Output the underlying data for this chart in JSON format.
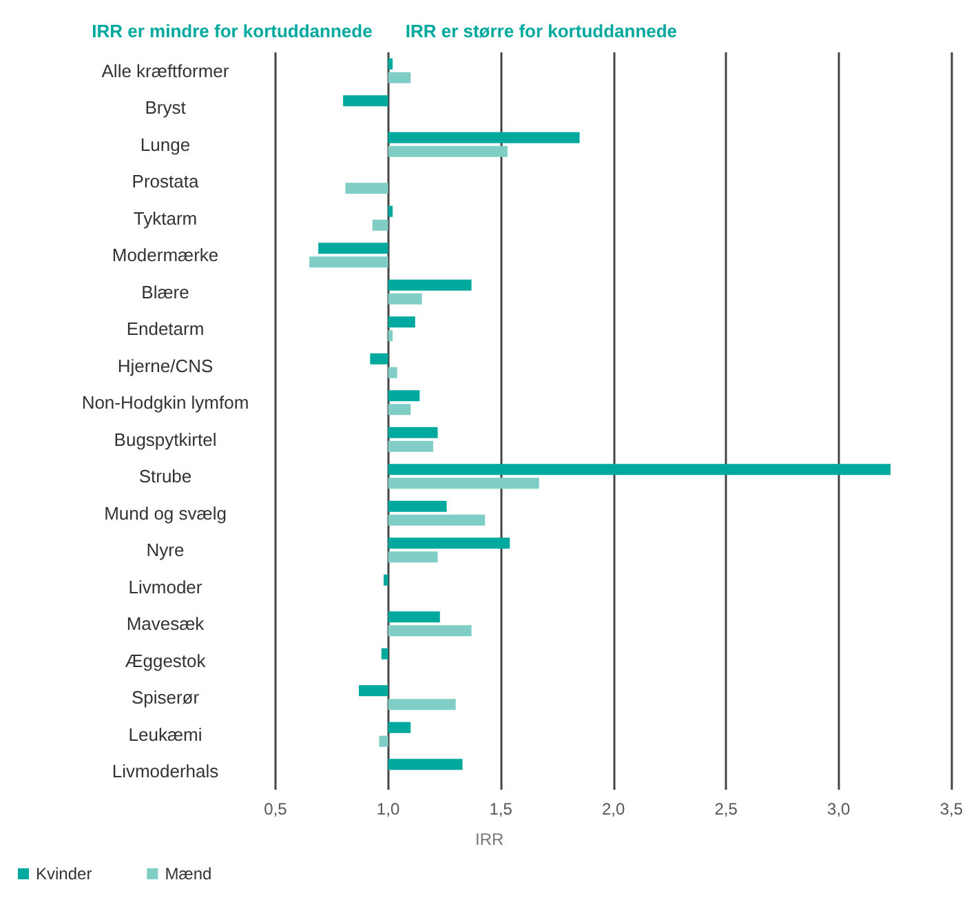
{
  "chart_data": {
    "type": "bar",
    "orientation": "horizontal",
    "xlabel": "IRR",
    "annotations": [
      "IRR er mindre for kortuddannede",
      "IRR er større for kortuddannede"
    ],
    "categories": [
      "Alle kræftformer",
      "Bryst",
      "Lunge",
      "Prostata",
      "Tyktarm",
      "Modermærke",
      "Blære",
      "Endetarm",
      "Hjerne/CNS",
      "Non-Hodgkin lymfom",
      "Bugspytkirtel",
      "Strube",
      "Mund og svælg",
      "Nyre",
      "Livmoder",
      "Mavesæk",
      "Æggestok",
      "Spiserør",
      "Leukæmi",
      "Livmoderhals"
    ],
    "series": [
      {
        "name": "Kvinder",
        "color": "#00a99d",
        "base": [
          1,
          1,
          1,
          null,
          1,
          1,
          1,
          1,
          1,
          1,
          1,
          1,
          1,
          1,
          1,
          1,
          1,
          1,
          1,
          1
        ],
        "values": [
          0.02,
          -0.2,
          0.85,
          null,
          0.02,
          -0.31,
          0.37,
          0.12,
          -0.08,
          0.14,
          0.22,
          2.23,
          0.26,
          0.54,
          -0.02,
          0.23,
          -0.03,
          -0.13,
          0.1,
          0.33
        ]
      },
      {
        "name": "Mænd",
        "color": "#7fcdc5",
        "base": [
          1,
          null,
          1,
          1,
          1,
          1,
          1,
          1,
          1,
          1,
          1,
          1,
          1,
          1,
          null,
          1,
          null,
          1,
          1,
          null
        ],
        "values": [
          0.1,
          null,
          0.53,
          -0.19,
          -0.07,
          -0.35,
          0.15,
          0.02,
          0.04,
          0.1,
          0.2,
          0.67,
          0.43,
          0.22,
          null,
          0.37,
          null,
          0.3,
          -0.04,
          null
        ]
      }
    ],
    "xlim": [
      0.5,
      3.5
    ],
    "xticks": [
      {
        "value": 0.5,
        "label": "0,5"
      },
      {
        "value": 1,
        "label": "1,0"
      },
      {
        "value": 1.5,
        "label": "1,5"
      },
      {
        "value": 2,
        "label": "2,0"
      },
      {
        "value": 2.5,
        "label": "2,5"
      },
      {
        "value": 3,
        "label": "3,0"
      },
      {
        "value": 3.5,
        "label": "3,5"
      }
    ],
    "grid": "x",
    "legend": "bottom left"
  }
}
